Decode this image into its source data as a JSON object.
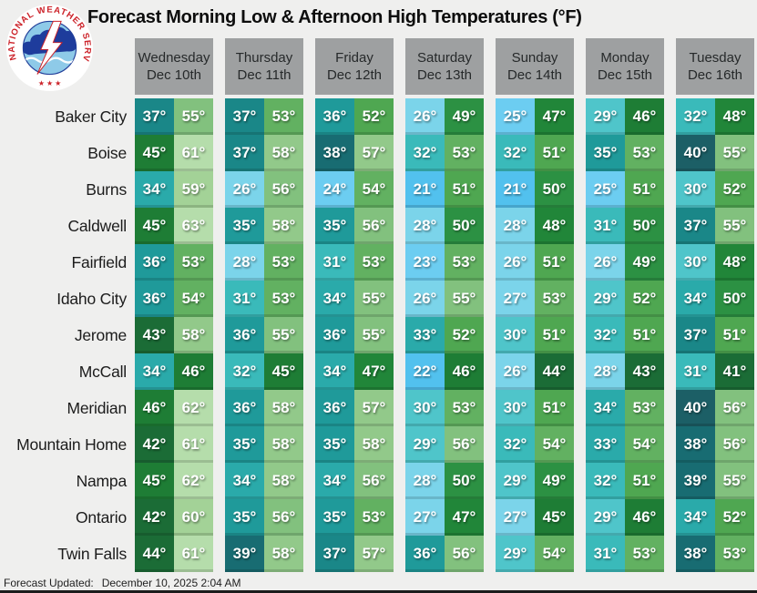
{
  "title": "Forecast Morning Low & Afternoon High Temperatures (°F)",
  "logo": {
    "ring_text": "NATIONAL WEATHER SERVICE",
    "stars": "★ ★ ★"
  },
  "footer": {
    "label": "Forecast Updated:",
    "value": "December 10, 2025 2:04 AM"
  },
  "colors": {
    "page_bg": "#EFEFEE",
    "header_bg": "#9EA0A1",
    "bottom_bar": "#1B1B1B",
    "logo_red": "#CC2229",
    "logo_cloud_blue": "#1E3C9C",
    "logo_sky_blue": "#8ECAE8"
  },
  "chart_data": {
    "type": "heatmap",
    "title": "Forecast Morning Low & Afternoon High Temperatures (°F)",
    "unit": "°F",
    "degree_symbol": "°",
    "days": [
      {
        "label": "Wednesday",
        "date": "Dec 10th"
      },
      {
        "label": "Thursday",
        "date": "Dec 11th"
      },
      {
        "label": "Friday",
        "date": "Dec 12th"
      },
      {
        "label": "Saturday",
        "date": "Dec 13th"
      },
      {
        "label": "Sunday",
        "date": "Dec 14th"
      },
      {
        "label": "Monday",
        "date": "Dec 15th"
      },
      {
        "label": "Tuesday",
        "date": "Dec 16th"
      }
    ],
    "cities": [
      {
        "name": "Baker City",
        "temps": [
          [
            37,
            55
          ],
          [
            37,
            53
          ],
          [
            36,
            52
          ],
          [
            26,
            49
          ],
          [
            25,
            47
          ],
          [
            29,
            46
          ],
          [
            32,
            48
          ]
        ]
      },
      {
        "name": "Boise",
        "temps": [
          [
            45,
            61
          ],
          [
            37,
            58
          ],
          [
            38,
            57
          ],
          [
            32,
            53
          ],
          [
            32,
            51
          ],
          [
            35,
            53
          ],
          [
            40,
            55
          ]
        ]
      },
      {
        "name": "Burns",
        "temps": [
          [
            34,
            59
          ],
          [
            26,
            56
          ],
          [
            24,
            54
          ],
          [
            21,
            51
          ],
          [
            21,
            50
          ],
          [
            25,
            51
          ],
          [
            30,
            52
          ]
        ]
      },
      {
        "name": "Caldwell",
        "temps": [
          [
            45,
            63
          ],
          [
            35,
            58
          ],
          [
            35,
            56
          ],
          [
            28,
            50
          ],
          [
            28,
            48
          ],
          [
            31,
            50
          ],
          [
            37,
            55
          ]
        ]
      },
      {
        "name": "Fairfield",
        "temps": [
          [
            36,
            53
          ],
          [
            28,
            53
          ],
          [
            31,
            53
          ],
          [
            23,
            53
          ],
          [
            26,
            51
          ],
          [
            26,
            49
          ],
          [
            30,
            48
          ]
        ]
      },
      {
        "name": "Idaho City",
        "temps": [
          [
            36,
            54
          ],
          [
            31,
            53
          ],
          [
            34,
            55
          ],
          [
            26,
            55
          ],
          [
            27,
            53
          ],
          [
            29,
            52
          ],
          [
            34,
            50
          ]
        ]
      },
      {
        "name": "Jerome",
        "temps": [
          [
            43,
            58
          ],
          [
            36,
            55
          ],
          [
            36,
            55
          ],
          [
            33,
            52
          ],
          [
            30,
            51
          ],
          [
            32,
            51
          ],
          [
            37,
            51
          ]
        ]
      },
      {
        "name": "McCall",
        "temps": [
          [
            34,
            46
          ],
          [
            32,
            45
          ],
          [
            34,
            47
          ],
          [
            22,
            46
          ],
          [
            26,
            44
          ],
          [
            28,
            43
          ],
          [
            31,
            41
          ]
        ]
      },
      {
        "name": "Meridian",
        "temps": [
          [
            46,
            62
          ],
          [
            36,
            58
          ],
          [
            36,
            57
          ],
          [
            30,
            53
          ],
          [
            30,
            51
          ],
          [
            34,
            53
          ],
          [
            40,
            56
          ]
        ]
      },
      {
        "name": "Mountain Home",
        "temps": [
          [
            42,
            61
          ],
          [
            35,
            58
          ],
          [
            35,
            58
          ],
          [
            29,
            56
          ],
          [
            32,
            54
          ],
          [
            33,
            54
          ],
          [
            38,
            56
          ]
        ]
      },
      {
        "name": "Nampa",
        "temps": [
          [
            45,
            62
          ],
          [
            34,
            58
          ],
          [
            34,
            56
          ],
          [
            28,
            50
          ],
          [
            29,
            49
          ],
          [
            32,
            51
          ],
          [
            39,
            55
          ]
        ]
      },
      {
        "name": "Ontario",
        "temps": [
          [
            42,
            60
          ],
          [
            35,
            56
          ],
          [
            35,
            53
          ],
          [
            27,
            47
          ],
          [
            27,
            45
          ],
          [
            29,
            46
          ],
          [
            34,
            52
          ]
        ]
      },
      {
        "name": "Twin Falls",
        "temps": [
          [
            44,
            61
          ],
          [
            39,
            58
          ],
          [
            37,
            57
          ],
          [
            36,
            56
          ],
          [
            29,
            54
          ],
          [
            31,
            53
          ],
          [
            38,
            53
          ]
        ]
      }
    ],
    "color_scale": [
      {
        "max": 22,
        "color": "#52C1EE"
      },
      {
        "max": 25,
        "color": "#6CCDF1"
      },
      {
        "max": 28,
        "color": "#7BD4EA"
      },
      {
        "max": 30,
        "color": "#4FC5CA"
      },
      {
        "max": 32,
        "color": "#3ABABA"
      },
      {
        "max": 34,
        "color": "#2AAAAA"
      },
      {
        "max": 36,
        "color": "#1F9A9A"
      },
      {
        "max": 37,
        "color": "#1A8788"
      },
      {
        "max": 39,
        "color": "#186C72"
      },
      {
        "max": 40,
        "color": "#1C5F66"
      },
      {
        "max": 44,
        "color": "#1B6C36"
      },
      {
        "max": 46,
        "color": "#1E7D35"
      },
      {
        "max": 48,
        "color": "#218639"
      },
      {
        "max": 50,
        "color": "#2C9143"
      },
      {
        "max": 52,
        "color": "#4FA751"
      },
      {
        "max": 54,
        "color": "#62B161"
      },
      {
        "max": 56,
        "color": "#82C17E"
      },
      {
        "max": 58,
        "color": "#92C98A"
      },
      {
        "max": 60,
        "color": "#A3D297"
      },
      {
        "max": 99,
        "color": "#B5DDAB"
      }
    ]
  }
}
